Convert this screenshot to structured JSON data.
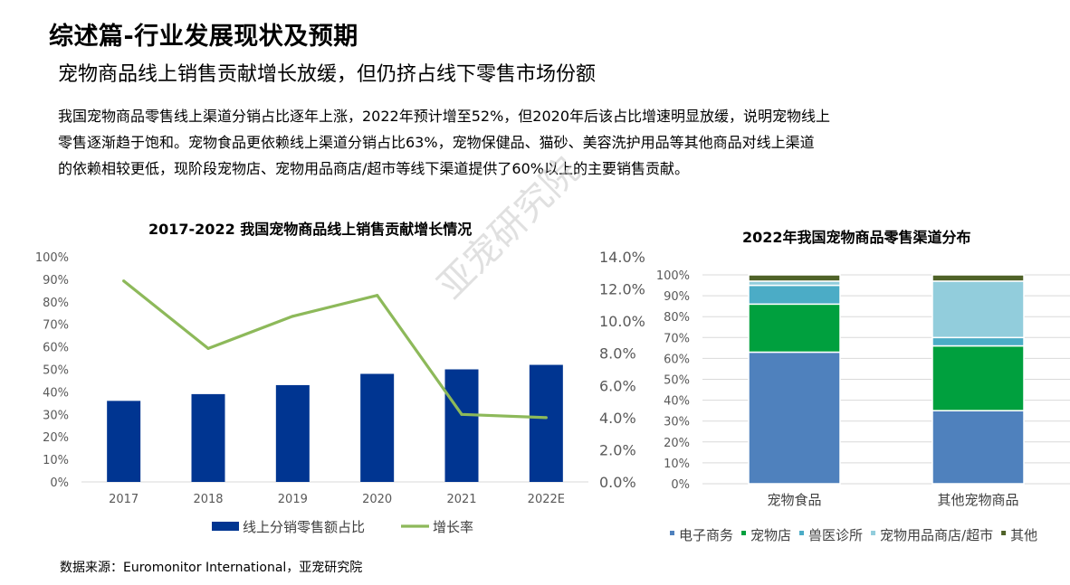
{
  "page": {
    "title": "综述篇-行业发展现状及预期",
    "subtitle": "宠物商品线上销售贡献增长放缓，但仍挤占线下零售市场份额",
    "body_lines": [
      "我国宠物商品零售线上渠道分销占比逐年上涨，2022年预计增至52%，但2020年后该占比增速明显放缓，说明宠物线上",
      "零售逐渐趋于饱和。宠物食品更依赖线上渠道分销占比63%，宠物保健品、猫砂、美容洗护用品等其他商品对线上渠道",
      "的依赖相较更低，现阶段宠物店、宠物用品商店/超市等线下渠道提供了60%以上的主要销售贡献。"
    ],
    "source": "数据来源：Euromonitor International，亚宠研究院",
    "watermark": "亚宠研究院"
  },
  "chart_data": [
    {
      "type": "bar",
      "title": "2017-2022 我国宠物商品线上销售贡献增长情况",
      "categories": [
        "2017",
        "2018",
        "2019",
        "2020",
        "2021",
        "2022E"
      ],
      "series": [
        {
          "name": "线上分销零售额占比",
          "type": "bar",
          "axis": "left",
          "values": [
            36,
            39,
            43,
            48,
            50,
            52
          ],
          "color": "#003591"
        },
        {
          "name": "增长率",
          "type": "line",
          "axis": "right",
          "values": [
            12.5,
            8.3,
            10.3,
            11.6,
            4.2,
            4.0
          ],
          "color": "#8db95a"
        }
      ],
      "y_left": {
        "min": 0,
        "max": 100,
        "step": 10,
        "format": "percent0"
      },
      "y_right": {
        "min": 0,
        "max": 14,
        "step": 2,
        "format": "percent1"
      },
      "grid": false,
      "legend": "bottom"
    },
    {
      "type": "bar",
      "stacked": true,
      "title": "2022年我国宠物商品零售渠道分布",
      "categories": [
        "宠物食品",
        "其他宠物商品"
      ],
      "series": [
        {
          "name": "电子商务",
          "values": [
            63,
            35
          ],
          "color": "#4f81bd"
        },
        {
          "name": "宠物店",
          "values": [
            23,
            31
          ],
          "color": "#00a03e"
        },
        {
          "name": "兽医诊所",
          "values": [
            9,
            4
          ],
          "color": "#4bacc6"
        },
        {
          "name": "宠物用品商店/超市",
          "values": [
            2,
            27
          ],
          "color": "#92cddc"
        },
        {
          "name": "其他",
          "values": [
            3,
            3
          ],
          "color": "#4f6228"
        }
      ],
      "y": {
        "min": 0,
        "max": 100,
        "step": 10,
        "format": "percent0"
      },
      "grid": true,
      "legend": "bottom"
    }
  ]
}
